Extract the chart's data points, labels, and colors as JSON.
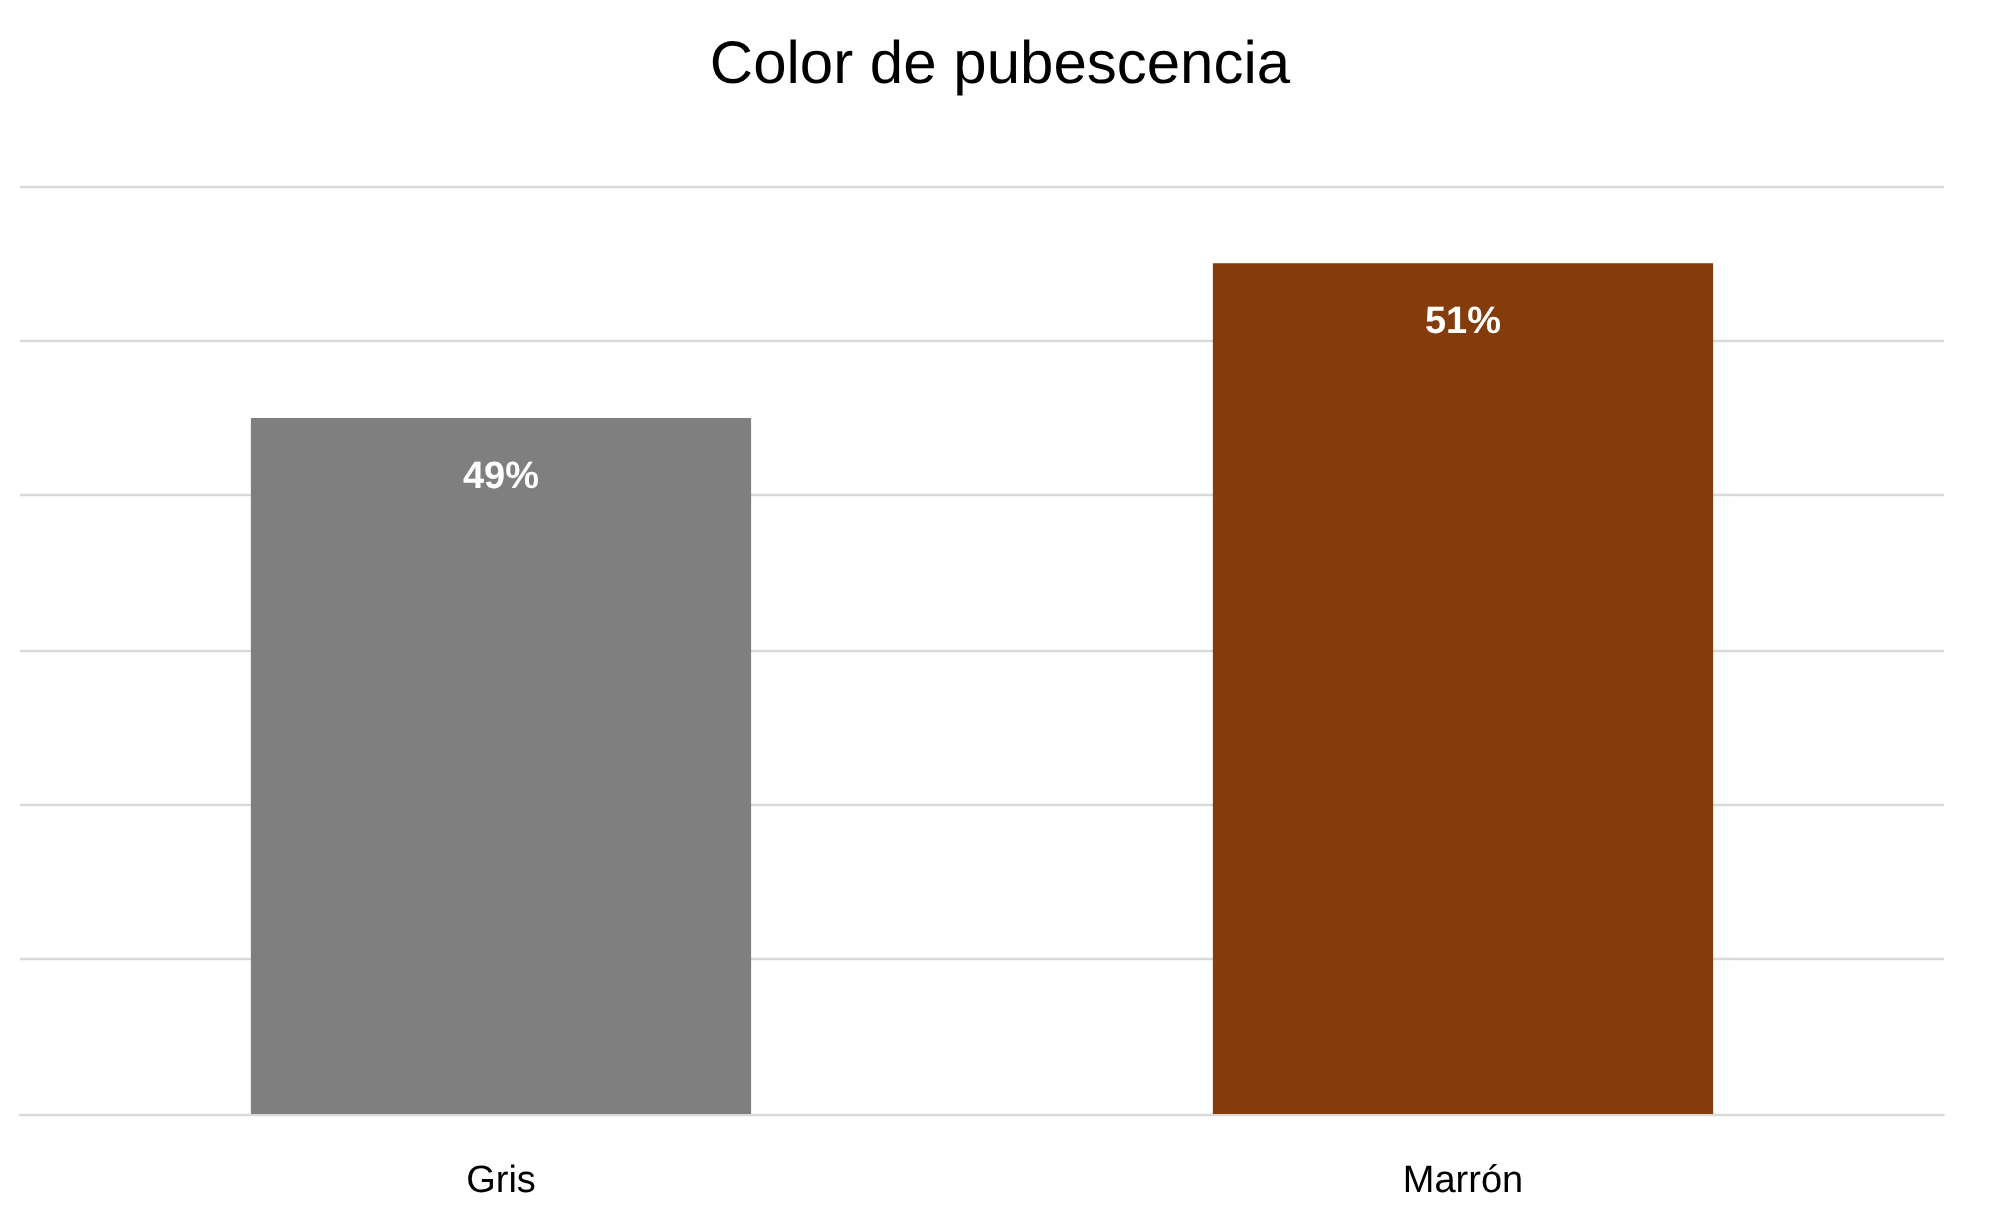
{
  "chart_data": {
    "type": "bar",
    "title": "Color de pubescencia",
    "categories": [
      "Gris",
      "Marrón"
    ],
    "values": [
      49,
      51
    ],
    "colors": [
      "#7f7f7f",
      "#843c0c"
    ],
    "value_labels": [
      "49%",
      "51%"
    ],
    "ylim": [
      40,
      52
    ],
    "yticks": [
      40,
      42,
      44,
      46,
      48,
      50,
      52
    ],
    "tick_labels": "x",
    "grid": "y"
  }
}
